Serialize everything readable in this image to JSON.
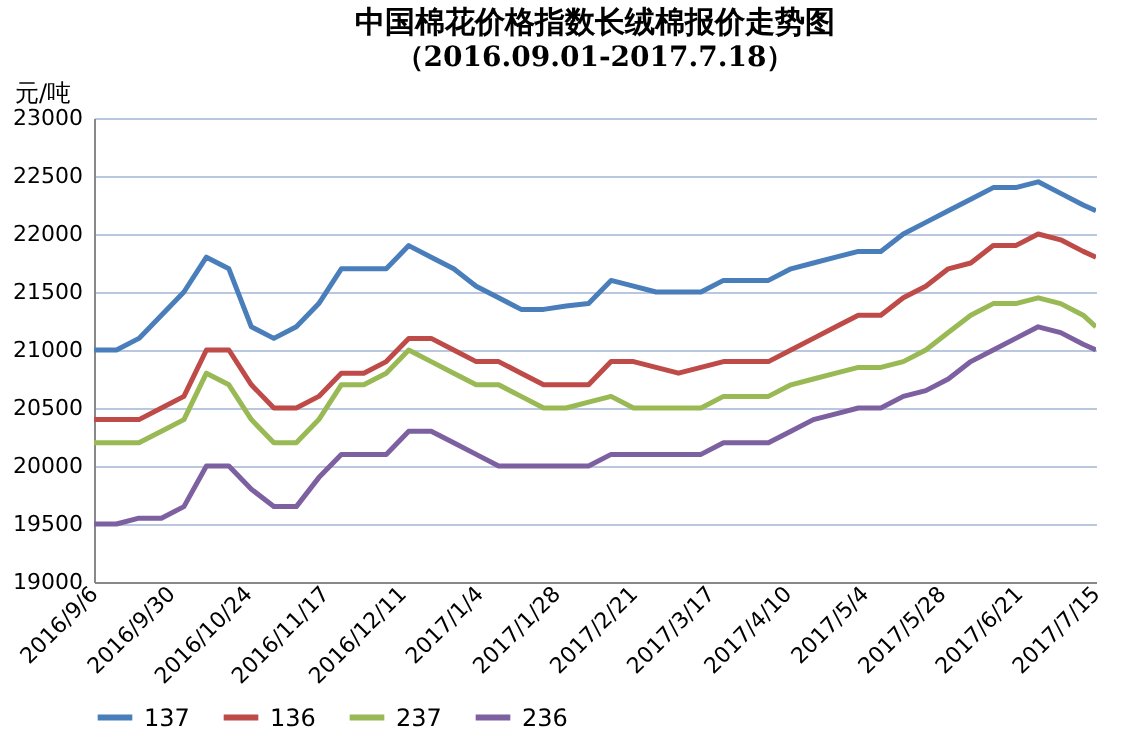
{
  "chart_data": {
    "type": "line",
    "title": "中国棉花价格指数长绒棉报价走势图",
    "subtitle": "（2016.09.01-2017.7.18）",
    "ylabel": "元/吨",
    "x": [
      "2016-09-06",
      "2016-09-13",
      "2016-09-20",
      "2016-09-27",
      "2016-10-04",
      "2016-10-11",
      "2016-10-18",
      "2016-10-25",
      "2016-11-01",
      "2016-11-08",
      "2016-11-15",
      "2016-11-22",
      "2016-11-29",
      "2016-12-06",
      "2016-12-13",
      "2016-12-20",
      "2016-12-27",
      "2017-01-03",
      "2017-01-10",
      "2017-01-17",
      "2017-01-24",
      "2017-01-31",
      "2017-02-07",
      "2017-02-14",
      "2017-02-21",
      "2017-02-28",
      "2017-03-07",
      "2017-03-14",
      "2017-03-21",
      "2017-03-28",
      "2017-04-04",
      "2017-04-11",
      "2017-04-18",
      "2017-04-25",
      "2017-05-02",
      "2017-05-09",
      "2017-05-16",
      "2017-05-23",
      "2017-05-30",
      "2017-06-06",
      "2017-06-13",
      "2017-06-20",
      "2017-06-27",
      "2017-07-04",
      "2017-07-11",
      "2017-07-15"
    ],
    "series": [
      {
        "name": "137",
        "color": "#4a7ebb",
        "values": [
          21000,
          21000,
          21100,
          21300,
          21500,
          21800,
          21700,
          21200,
          21100,
          21200,
          21400,
          21700,
          21700,
          21700,
          21900,
          21800,
          21700,
          21550,
          21450,
          21350,
          21350,
          21380,
          21400,
          21600,
          21550,
          21500,
          21500,
          21500,
          21600,
          21600,
          21600,
          21700,
          21750,
          21800,
          21850,
          21850,
          22000,
          22100,
          22200,
          22300,
          22400,
          22400,
          22450,
          22350,
          22250,
          22200
        ]
      },
      {
        "name": "136",
        "color": "#be4b48",
        "values": [
          20400,
          20400,
          20400,
          20500,
          20600,
          21000,
          21000,
          20700,
          20500,
          20500,
          20600,
          20800,
          20800,
          20900,
          21100,
          21100,
          21000,
          20900,
          20900,
          20800,
          20700,
          20700,
          20700,
          20900,
          20900,
          20850,
          20800,
          20850,
          20900,
          20900,
          20900,
          21000,
          21100,
          21200,
          21300,
          21300,
          21450,
          21550,
          21700,
          21750,
          21900,
          21900,
          22000,
          21950,
          21850,
          21800
        ]
      },
      {
        "name": "237",
        "color": "#98b954",
        "values": [
          20200,
          20200,
          20200,
          20300,
          20400,
          20800,
          20700,
          20400,
          20200,
          20200,
          20400,
          20700,
          20700,
          20800,
          21000,
          20900,
          20800,
          20700,
          20700,
          20600,
          20500,
          20500,
          20550,
          20600,
          20500,
          20500,
          20500,
          20500,
          20600,
          20600,
          20600,
          20700,
          20750,
          20800,
          20850,
          20850,
          20900,
          21000,
          21150,
          21300,
          21400,
          21400,
          21450,
          21400,
          21300,
          21200
        ]
      },
      {
        "name": "236",
        "color": "#7d60a0",
        "values": [
          19500,
          19500,
          19550,
          19550,
          19650,
          20000,
          20000,
          19800,
          19650,
          19650,
          19900,
          20100,
          20100,
          20100,
          20300,
          20300,
          20200,
          20100,
          20000,
          20000,
          20000,
          20000,
          20000,
          20100,
          20100,
          20100,
          20100,
          20100,
          20200,
          20200,
          20200,
          20300,
          20400,
          20450,
          20500,
          20500,
          20600,
          20650,
          20750,
          20900,
          21000,
          21100,
          21200,
          21150,
          21050,
          21000
        ]
      }
    ],
    "xlim": [
      "2016-09-06",
      "2017-07-15"
    ],
    "xticks": [
      {
        "value": "2016-09-06",
        "label": "2016/9/6"
      },
      {
        "value": "2016-09-30",
        "label": "2016/9/30"
      },
      {
        "value": "2016-10-24",
        "label": "2016/10/24"
      },
      {
        "value": "2016-11-17",
        "label": "2016/11/17"
      },
      {
        "value": "2016-12-11",
        "label": "2016/12/11"
      },
      {
        "value": "2017-01-04",
        "label": "2017/1/4"
      },
      {
        "value": "2017-01-28",
        "label": "2017/1/28"
      },
      {
        "value": "2017-02-21",
        "label": "2017/2/21"
      },
      {
        "value": "2017-03-17",
        "label": "2017/3/17"
      },
      {
        "value": "2017-04-10",
        "label": "2017/4/10"
      },
      {
        "value": "2017-05-04",
        "label": "2017/5/4"
      },
      {
        "value": "2017-05-28",
        "label": "2017/5/28"
      },
      {
        "value": "2017-06-21",
        "label": "2017/6/21"
      },
      {
        "value": "2017-07-15",
        "label": "2017/7/15"
      }
    ],
    "ylim": [
      19000,
      23000
    ],
    "yticks": [
      19000,
      19500,
      20000,
      20500,
      21000,
      21500,
      22000,
      22500,
      23000
    ],
    "grid": "y",
    "legend": "bottom",
    "line_style": "solid"
  }
}
